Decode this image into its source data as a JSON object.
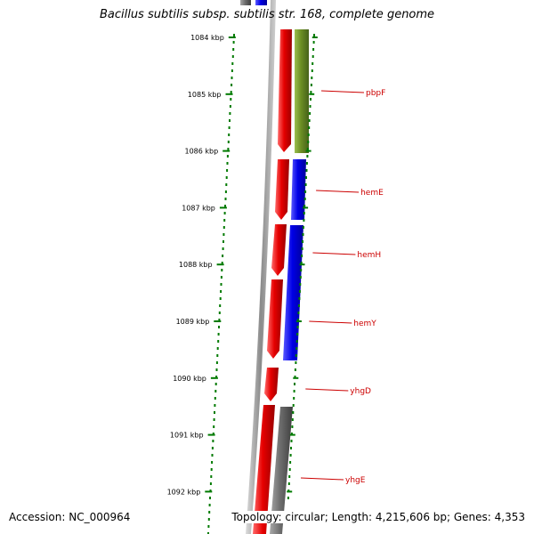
{
  "title": "Bacillus subtilis subsp. subtilis str. 168, complete genome",
  "accession": "Accession: NC_000964",
  "topology": "Topology: circular; Length: 4,215,606 bp; Genes: 4,353",
  "colors": {
    "cds_forward": "#e60000",
    "blue_track": "#0000e6",
    "olive_track": "#6b8e23",
    "gray_track": "#6e6e6e",
    "tick": "#007a00",
    "label": "#cc0000",
    "backbone": "#8a8a8a"
  },
  "ticks": [
    {
      "label": "1084 kbp"
    },
    {
      "label": "1085 kbp"
    },
    {
      "label": "1086 kbp"
    },
    {
      "label": "1087 kbp"
    },
    {
      "label": "1088 kbp"
    },
    {
      "label": "1089 kbp"
    },
    {
      "label": "1090 kbp"
    },
    {
      "label": "1091 kbp"
    },
    {
      "label": "1092 kbp"
    }
  ],
  "genes": [
    {
      "name": "pbpF"
    },
    {
      "name": "hemE"
    },
    {
      "name": "hemH"
    },
    {
      "name": "hemY"
    },
    {
      "name": "yhgD"
    },
    {
      "name": "yhgE"
    }
  ]
}
